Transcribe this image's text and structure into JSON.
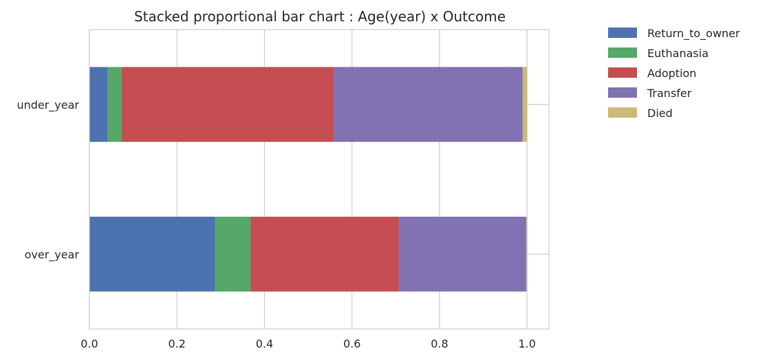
{
  "chart_data": {
    "type": "bar",
    "orientation": "horizontal",
    "stacked": true,
    "title": "Stacked proportional bar chart : Age(year) x Outcome",
    "xlabel": "",
    "ylabel": "",
    "xlim": [
      0,
      1.05
    ],
    "xticks": [
      "0.0",
      "0.2",
      "0.4",
      "0.6",
      "0.8",
      "1.0"
    ],
    "grid": true,
    "legend_position": "outside-right",
    "categories": [
      "under_year",
      "over_year"
    ],
    "series": [
      {
        "name": "Return_to_owner",
        "color": "#4C72B0",
        "values": [
          0.042,
          0.287
        ]
      },
      {
        "name": "Euthanasia",
        "color": "#55A868",
        "values": [
          0.032,
          0.081
        ]
      },
      {
        "name": "Adoption",
        "color": "#C44E52",
        "values": [
          0.484,
          0.339
        ]
      },
      {
        "name": "Transfer",
        "color": "#8172B2",
        "values": [
          0.432,
          0.291
        ]
      },
      {
        "name": "Died",
        "color": "#CCB974",
        "values": [
          0.01,
          0.002
        ]
      }
    ]
  }
}
